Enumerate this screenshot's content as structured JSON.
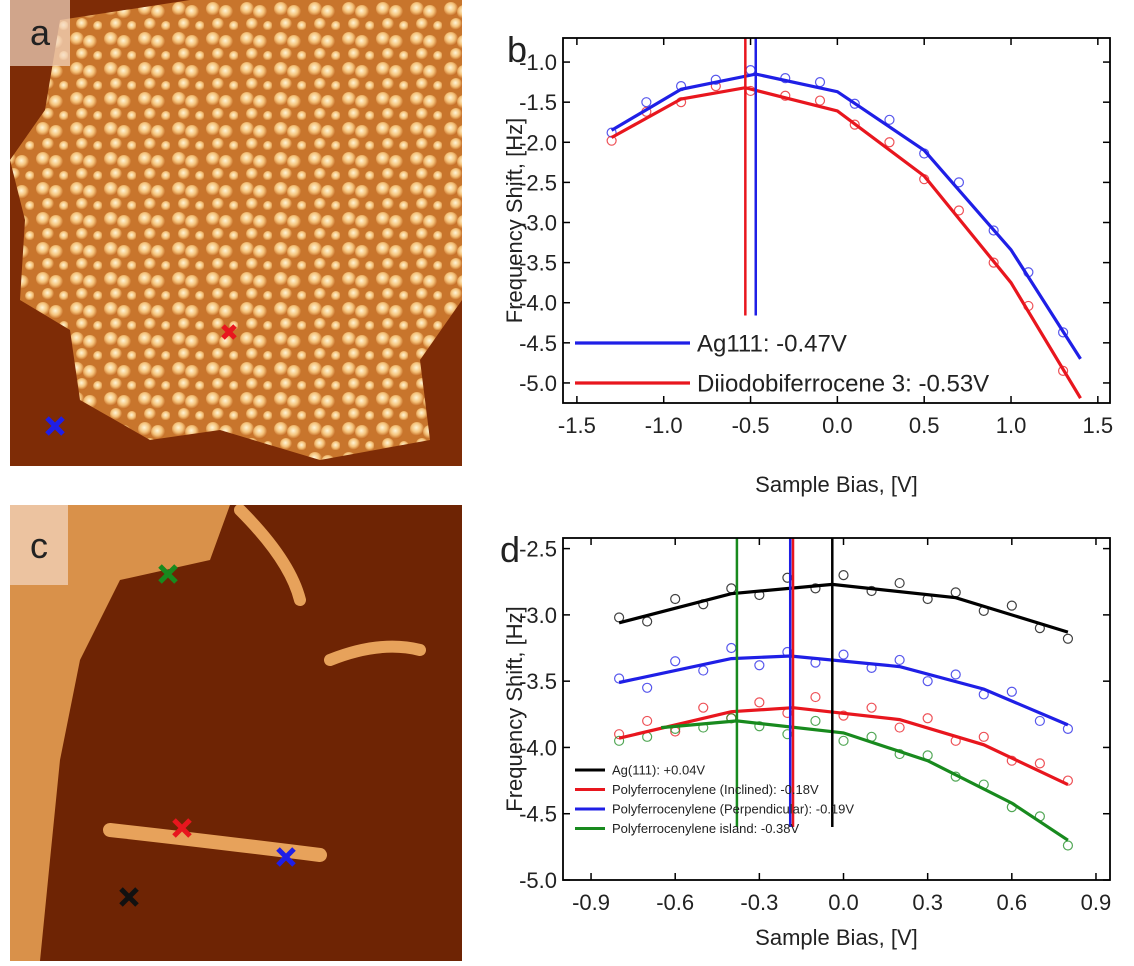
{
  "images": [
    {
      "label": "a"
    },
    {
      "label": "c"
    }
  ],
  "chart_data": [
    {
      "type": "scatter",
      "panel_label": "b",
      "xlabel": "Sample Bias, [V]",
      "ylabel": "Frequency Shift, [Hz]",
      "xlim": [
        -1.58,
        1.57
      ],
      "ylim": [
        -5.25,
        -0.7
      ],
      "xticks": [
        -1.5,
        {
          "value": -1,
          "label": "-1.0"
        },
        -0.5,
        {
          "value": 0,
          "label": "0.0"
        },
        0.5,
        {
          "value": 1,
          "label": "1.0"
        },
        1.5
      ],
      "yticks": [
        {
          "value": -1,
          "label": "-1.0"
        },
        -1.5,
        {
          "value": -2,
          "label": "-2.0"
        },
        -2.5,
        {
          "value": -3,
          "label": "-3.0"
        },
        -3.5,
        {
          "value": -4,
          "label": "-4.0"
        },
        -4.5,
        {
          "value": -5,
          "label": "-5.0"
        }
      ],
      "series": [
        {
          "name": "Ag111: -0.47V",
          "color": "#1f1fe6",
          "x": [
            -1.3,
            -1.1,
            -0.9,
            -0.7,
            -0.5,
            -0.3,
            -0.1,
            0.1,
            0.3,
            0.5,
            0.7,
            0.9,
            1.1,
            1.3
          ],
          "values": [
            -1.88,
            -1.5,
            -1.3,
            -1.22,
            -1.1,
            -1.2,
            -1.25,
            -1.52,
            -1.72,
            -2.14,
            -2.5,
            -3.1,
            -3.62,
            -4.37
          ],
          "fit_x": [
            -1.3,
            -0.9,
            -0.47,
            0,
            0.5,
            1.0,
            1.4
          ],
          "fit_values": [
            -1.85,
            -1.34,
            -1.15,
            -1.37,
            -2.1,
            -3.34,
            -4.7
          ],
          "vline_x": -0.47,
          "vline_bottom": -4.16
        },
        {
          "name": "Diiodobiferrocene 3: -0.53V",
          "color": "#e8161e",
          "x": [
            -1.3,
            -1.1,
            -0.9,
            -0.7,
            -0.5,
            -0.3,
            -0.1,
            0.1,
            0.3,
            0.5,
            0.7,
            0.9,
            1.1,
            1.3
          ],
          "values": [
            -1.98,
            -1.62,
            -1.5,
            -1.3,
            -1.36,
            -1.42,
            -1.48,
            -1.78,
            -2.0,
            -2.46,
            -2.85,
            -3.5,
            -4.04,
            -4.85
          ],
          "fit_x": [
            -1.3,
            -0.9,
            -0.53,
            0,
            0.5,
            1.0,
            1.4
          ],
          "fit_values": [
            -1.94,
            -1.46,
            -1.32,
            -1.61,
            -2.42,
            -3.75,
            -5.19
          ],
          "vline_x": -0.53,
          "vline_bottom": -4.16
        }
      ]
    },
    {
      "type": "scatter",
      "panel_label": "d",
      "xlabel": "Sample Bias, [V]",
      "ylabel": "Frequency Shift, [Hz]",
      "xlim": [
        -1.0,
        0.95
      ],
      "ylim": [
        -5.0,
        -2.42
      ],
      "xticks": [
        -0.9,
        -0.6,
        -0.3,
        {
          "value": 0,
          "label": "0.0"
        },
        0.3,
        0.6,
        0.9
      ],
      "yticks": [
        -2.5,
        {
          "value": -3,
          "label": "-3.0"
        },
        -3.5,
        {
          "value": -4,
          "label": "-4.0"
        },
        -4.5,
        {
          "value": -5,
          "label": "-5.0"
        }
      ],
      "series": [
        {
          "name": "Ag(111): +0.04V",
          "color": "#000000",
          "x": [
            -0.8,
            -0.7,
            -0.6,
            -0.5,
            -0.4,
            -0.3,
            -0.2,
            -0.1,
            0,
            0.1,
            0.2,
            0.3,
            0.4,
            0.5,
            0.6,
            0.7,
            0.8
          ],
          "values": [
            -3.02,
            -3.05,
            -2.88,
            -2.92,
            -2.8,
            -2.85,
            -2.72,
            -2.8,
            -2.7,
            -2.82,
            -2.76,
            -2.88,
            -2.83,
            -2.97,
            -2.93,
            -3.1,
            -3.18
          ],
          "fit_x": [
            -0.8,
            -0.4,
            -0.04,
            0.4,
            0.8
          ],
          "fit_values": [
            -3.06,
            -2.84,
            -2.77,
            -2.87,
            -3.13
          ],
          "vline_x": -0.04,
          "vline_bottom": -4.6
        },
        {
          "name": "Polyferrocenylene (Inclined): -0.18V",
          "color": "#e8161e",
          "x": [
            -0.8,
            -0.7,
            -0.6,
            -0.5,
            -0.4,
            -0.3,
            -0.2,
            -0.1,
            0,
            0.1,
            0.2,
            0.3,
            0.4,
            0.5,
            0.6,
            0.7,
            0.8
          ],
          "values": [
            -3.9,
            -3.8,
            -3.88,
            -3.7,
            -3.78,
            -3.66,
            -3.74,
            -3.62,
            -3.76,
            -3.7,
            -3.85,
            -3.78,
            -3.95,
            -3.92,
            -4.1,
            -4.12,
            -4.25
          ],
          "fit_x": [
            -0.8,
            -0.4,
            -0.18,
            0.2,
            0.5,
            0.8
          ],
          "fit_values": [
            -3.93,
            -3.73,
            -3.7,
            -3.79,
            -3.98,
            -4.28
          ],
          "vline_x": -0.18,
          "vline_bottom": -4.6
        },
        {
          "name": "Polyferrocenylene (Perpendicular): -0.19V",
          "color": "#1f1fe6",
          "x": [
            -0.8,
            -0.7,
            -0.6,
            -0.5,
            -0.4,
            -0.3,
            -0.2,
            -0.1,
            0,
            0.1,
            0.2,
            0.3,
            0.4,
            0.5,
            0.6,
            0.7,
            0.8
          ],
          "values": [
            -3.48,
            -3.55,
            -3.35,
            -3.42,
            -3.25,
            -3.38,
            -3.28,
            -3.36,
            -3.3,
            -3.4,
            -3.34,
            -3.5,
            -3.45,
            -3.6,
            -3.58,
            -3.8,
            -3.86
          ],
          "fit_x": [
            -0.8,
            -0.4,
            -0.19,
            0.2,
            0.5,
            0.8
          ],
          "fit_values": [
            -3.51,
            -3.33,
            -3.31,
            -3.39,
            -3.56,
            -3.83
          ],
          "vline_x": -0.19,
          "vline_bottom": -4.6
        },
        {
          "name": "Polyferrocenylene island: -0.38V",
          "color": "#188a1e",
          "x": [
            -0.8,
            -0.7,
            -0.6,
            -0.5,
            -0.4,
            -0.3,
            -0.2,
            -0.1,
            0,
            0.1,
            0.2,
            0.3,
            0.4,
            0.5,
            0.6,
            0.7,
            0.8
          ],
          "values": [
            -3.95,
            -3.92,
            -3.86,
            -3.85,
            -3.78,
            -3.84,
            -3.9,
            -3.8,
            -3.95,
            -3.92,
            -4.05,
            -4.06,
            -4.22,
            -4.28,
            -4.45,
            -4.52,
            -4.74
          ],
          "fit_x": [
            -0.65,
            -0.38,
            0,
            0.3,
            0.6,
            0.8
          ],
          "fit_values": [
            -3.85,
            -3.8,
            -3.89,
            -4.1,
            -4.42,
            -4.7
          ],
          "vline_x": -0.38,
          "vline_bottom": -4.6
        }
      ]
    }
  ]
}
